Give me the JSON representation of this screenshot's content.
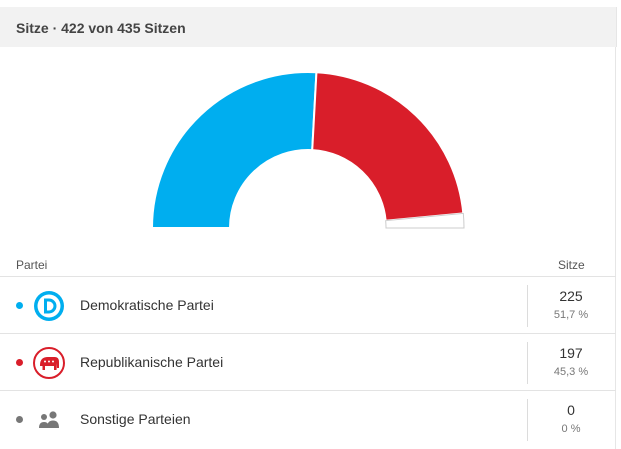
{
  "header": {
    "title": "Sitze · 422 von 435 Sitzen"
  },
  "table": {
    "col_party": "Partei",
    "col_seats": "Sitze",
    "rows": [
      {
        "name": "Demokratische Partei",
        "seats": "225",
        "percent": "51,7 %",
        "color": "#00aeef",
        "icon": "democrat-donkey-d-icon"
      },
      {
        "name": "Republikanische Partei",
        "seats": "197",
        "percent": "45,3 %",
        "color": "#d91e2a",
        "icon": "republican-elephant-icon"
      },
      {
        "name": "Sonstige Parteien",
        "seats": "0",
        "percent": "0 %",
        "color": "#777777",
        "icon": "people-group-icon"
      }
    ]
  },
  "chart_data": {
    "type": "pie",
    "style": "semicircle-donut",
    "total_seats": 435,
    "reported_seats": 422,
    "series": [
      {
        "name": "Demokratische Partei",
        "value": 225,
        "color": "#00aeef"
      },
      {
        "name": "Republikanische Partei",
        "value": 197,
        "color": "#d91e2a"
      },
      {
        "name": "Sonstige Parteien",
        "value": 0,
        "color": "#777777"
      }
    ],
    "unreported": {
      "value": 13,
      "color": "#ffffff"
    }
  }
}
